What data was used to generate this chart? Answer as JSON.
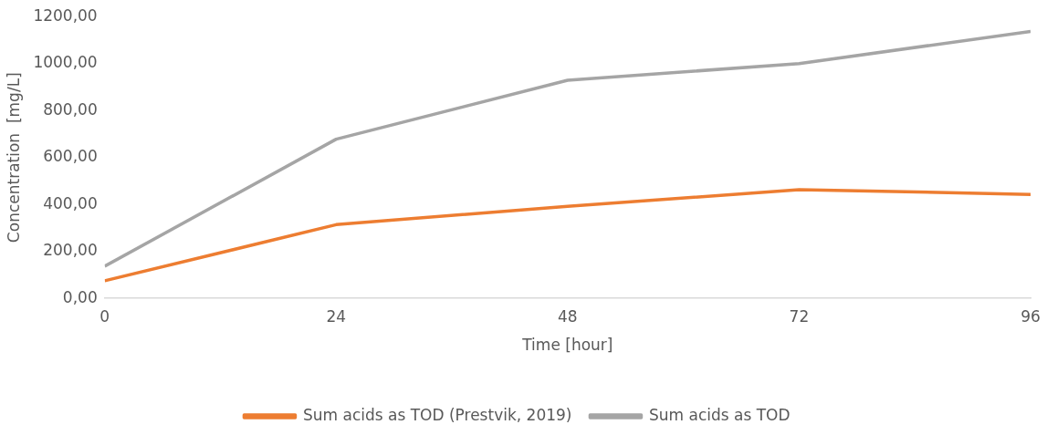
{
  "chart_data": {
    "type": "line",
    "xlabel": "Time [hour]",
    "ylabel": "Concentration  [mg/L]",
    "x": [
      0,
      24,
      48,
      72,
      96
    ],
    "series": [
      {
        "name": "Sum acids as TOD (Prestvik, 2019)",
        "color": "#ed7d31",
        "values": [
          75,
          314,
          392,
          463,
          443
        ]
      },
      {
        "name": "Sum acids as TOD",
        "color": "#a5a5a5",
        "values": [
          137,
          678,
          929,
          1000,
          1137
        ]
      }
    ],
    "xlim": [
      0,
      96
    ],
    "xticks": [
      0,
      24,
      48,
      72,
      96
    ],
    "ylim": [
      0,
      1200
    ],
    "yticks": [
      {
        "value": 0,
        "label": "0,00"
      },
      {
        "value": 200,
        "label": "200,00"
      },
      {
        "value": 400,
        "label": "400,00"
      },
      {
        "value": 600,
        "label": "600,00"
      },
      {
        "value": 800,
        "label": "800,00"
      },
      {
        "value": 1000,
        "label": "1000,00"
      },
      {
        "value": 1200,
        "label": "1200,00"
      }
    ],
    "grid": false,
    "legend": "bottom",
    "marker": "none",
    "line_style": "solid"
  }
}
